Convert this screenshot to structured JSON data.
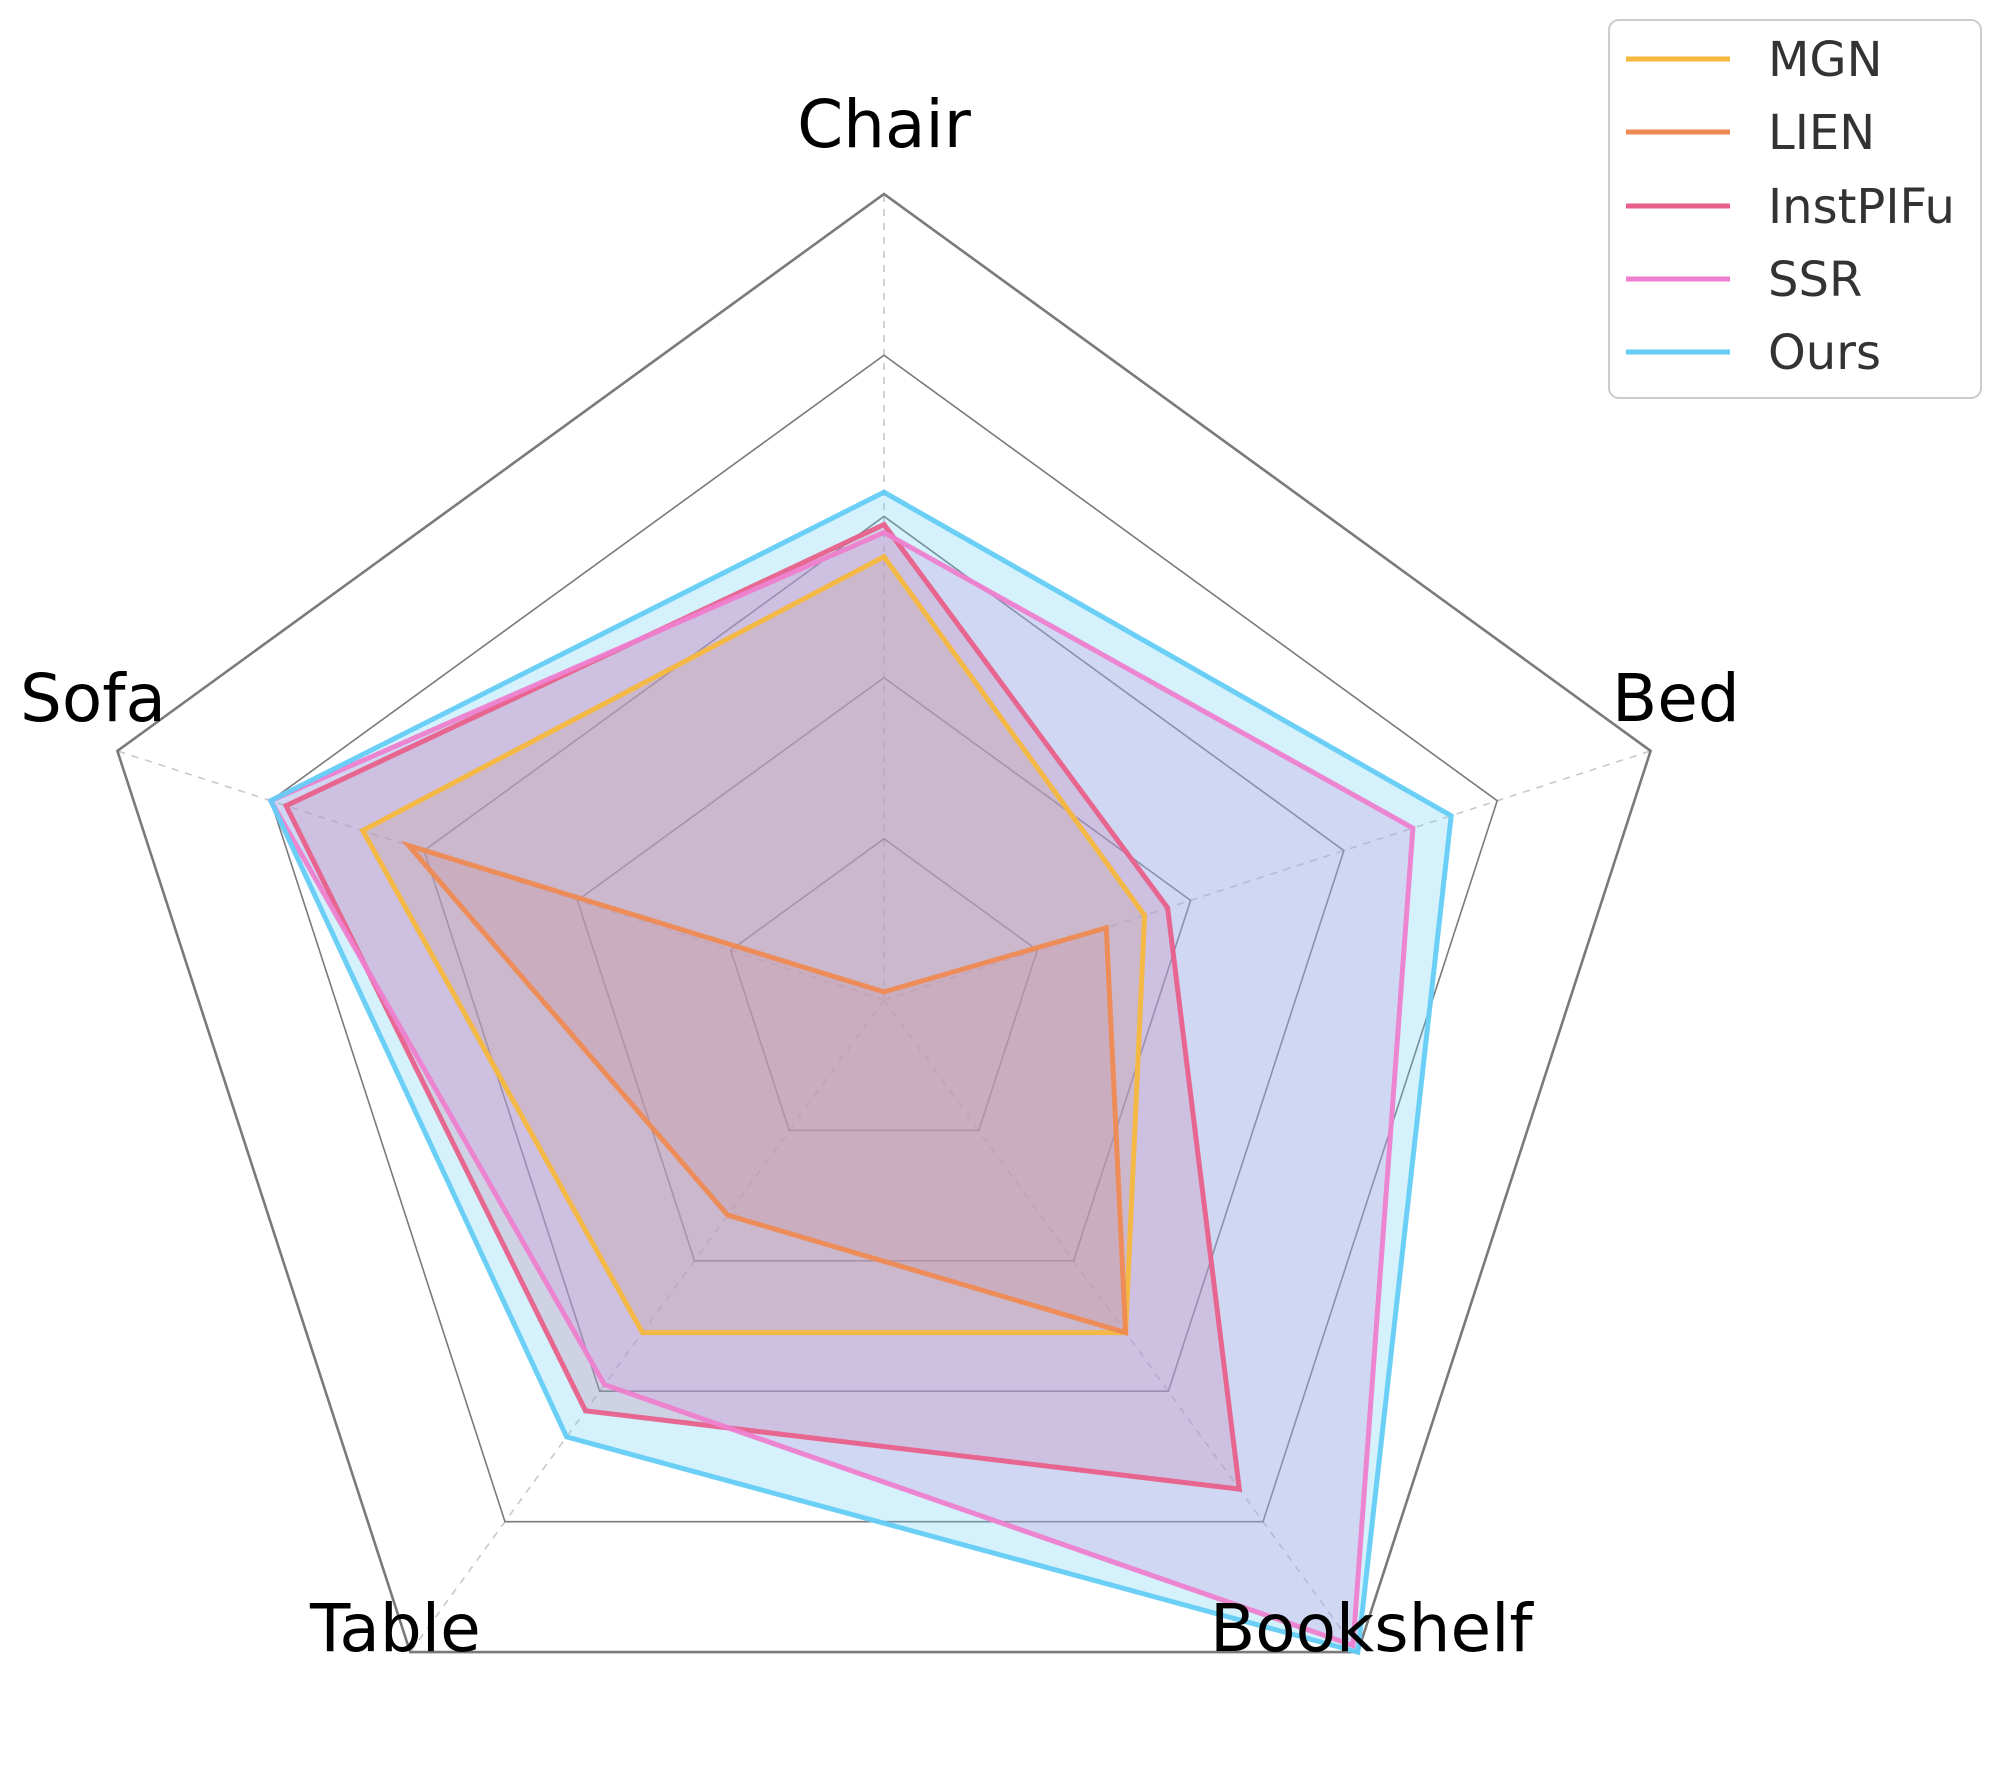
{
  "chart_data": {
    "type": "radar",
    "categories": [
      "Chair",
      "Bed",
      "Bookshelf",
      "Table",
      "Sofa"
    ],
    "rlim": [
      0,
      1
    ],
    "rings": [
      0.2,
      0.4,
      0.6,
      0.8,
      1.0
    ],
    "grid": true,
    "legend_position": "top-right",
    "title": "",
    "series": [
      {
        "name": "MGN",
        "color": "#f5b73d",
        "values": [
          0.55,
          0.34,
          0.51,
          0.51,
          0.68
        ]
      },
      {
        "name": "LIEN",
        "color": "#ee8a52",
        "values": [
          0.01,
          0.29,
          0.51,
          0.33,
          0.62
        ]
      },
      {
        "name": "InstPIFu",
        "color": "#e8608a",
        "values": [
          0.59,
          0.37,
          0.75,
          0.63,
          0.78
        ]
      },
      {
        "name": "SSR",
        "color": "#ee7fcf",
        "values": [
          0.58,
          0.69,
          0.99,
          0.59,
          0.8
        ]
      },
      {
        "name": "Ours",
        "color": "#64ccf5",
        "values": [
          0.63,
          0.74,
          1.0,
          0.67,
          0.8
        ]
      }
    ]
  }
}
